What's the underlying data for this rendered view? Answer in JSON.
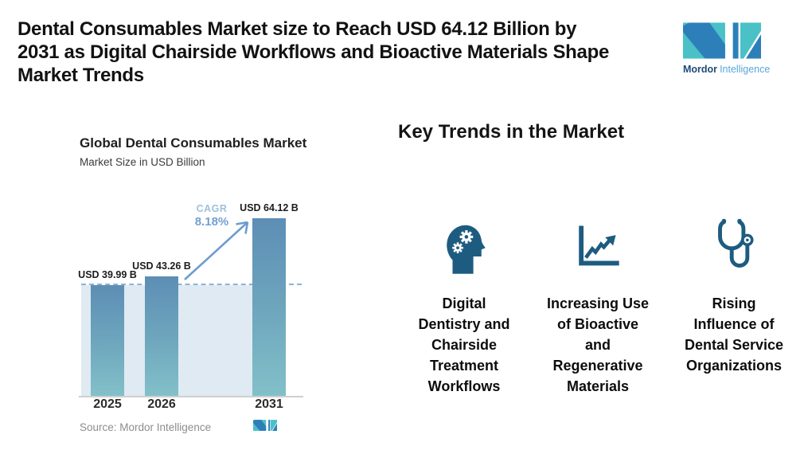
{
  "header": {
    "title": "Dental Consumables Market size to Reach USD 64.12 Billion by 2031 as Digital Chairside Workflows and Bioactive Materials Shape Market Trends",
    "title_lines": [
      "Dental Consumables Market size to Reach USD 64.12 Billion by",
      "2031 as Digital Chairside Workflows and Bioactive Materials Shape",
      "Market Trends"
    ],
    "logo": {
      "brand_bold": "Mordor",
      "brand_light": "Intelligence",
      "teal": "#49c1c6",
      "blue": "#2d7fba"
    }
  },
  "chart_data": {
    "type": "bar",
    "title": "Global Dental Consumables Market",
    "subtitle": "Market Size in USD Billion",
    "ylabel": "Market Size in USD Billion",
    "categories": [
      "2025",
      "2026",
      "2031"
    ],
    "values": [
      39.99,
      43.26,
      64.12
    ],
    "value_labels": [
      "USD 39.99 B",
      "USD 43.26 B",
      "USD 64.12 B"
    ],
    "cagr": {
      "label": "CAGR",
      "value": "8.18%"
    },
    "reference_line_value": 39.99,
    "grid": false,
    "legend": "none",
    "source": "Source: Mordor Intelligence",
    "bar_color_top": "#5d8eb5",
    "bar_color_bottom": "#82c0c9",
    "band_color": "#e0eaf2",
    "dashed_line_color": "#8fb3cf",
    "arrow_color": "#6f9bce"
  },
  "key_trends": {
    "heading": "Key Trends in the Market",
    "icon_color": "#1d5c80",
    "items": [
      {
        "icon": "head-gears-icon",
        "label": "Digital Dentistry and Chairside Treatment Workflows",
        "lines": [
          "Digital",
          "Dentistry and",
          "Chairside",
          "Treatment",
          "Workflows"
        ]
      },
      {
        "icon": "line-chart-icon",
        "label": "Increasing Use of Bioactive and Regenerative Materials",
        "lines": [
          "Increasing Use",
          "of Bioactive",
          "and",
          "Regenerative",
          "Materials"
        ]
      },
      {
        "icon": "stethoscope-icon",
        "label": "Rising Influence of Dental Service Organizations",
        "lines": [
          "Rising",
          "Influence of",
          "Dental Service",
          "Organizations"
        ]
      }
    ]
  }
}
